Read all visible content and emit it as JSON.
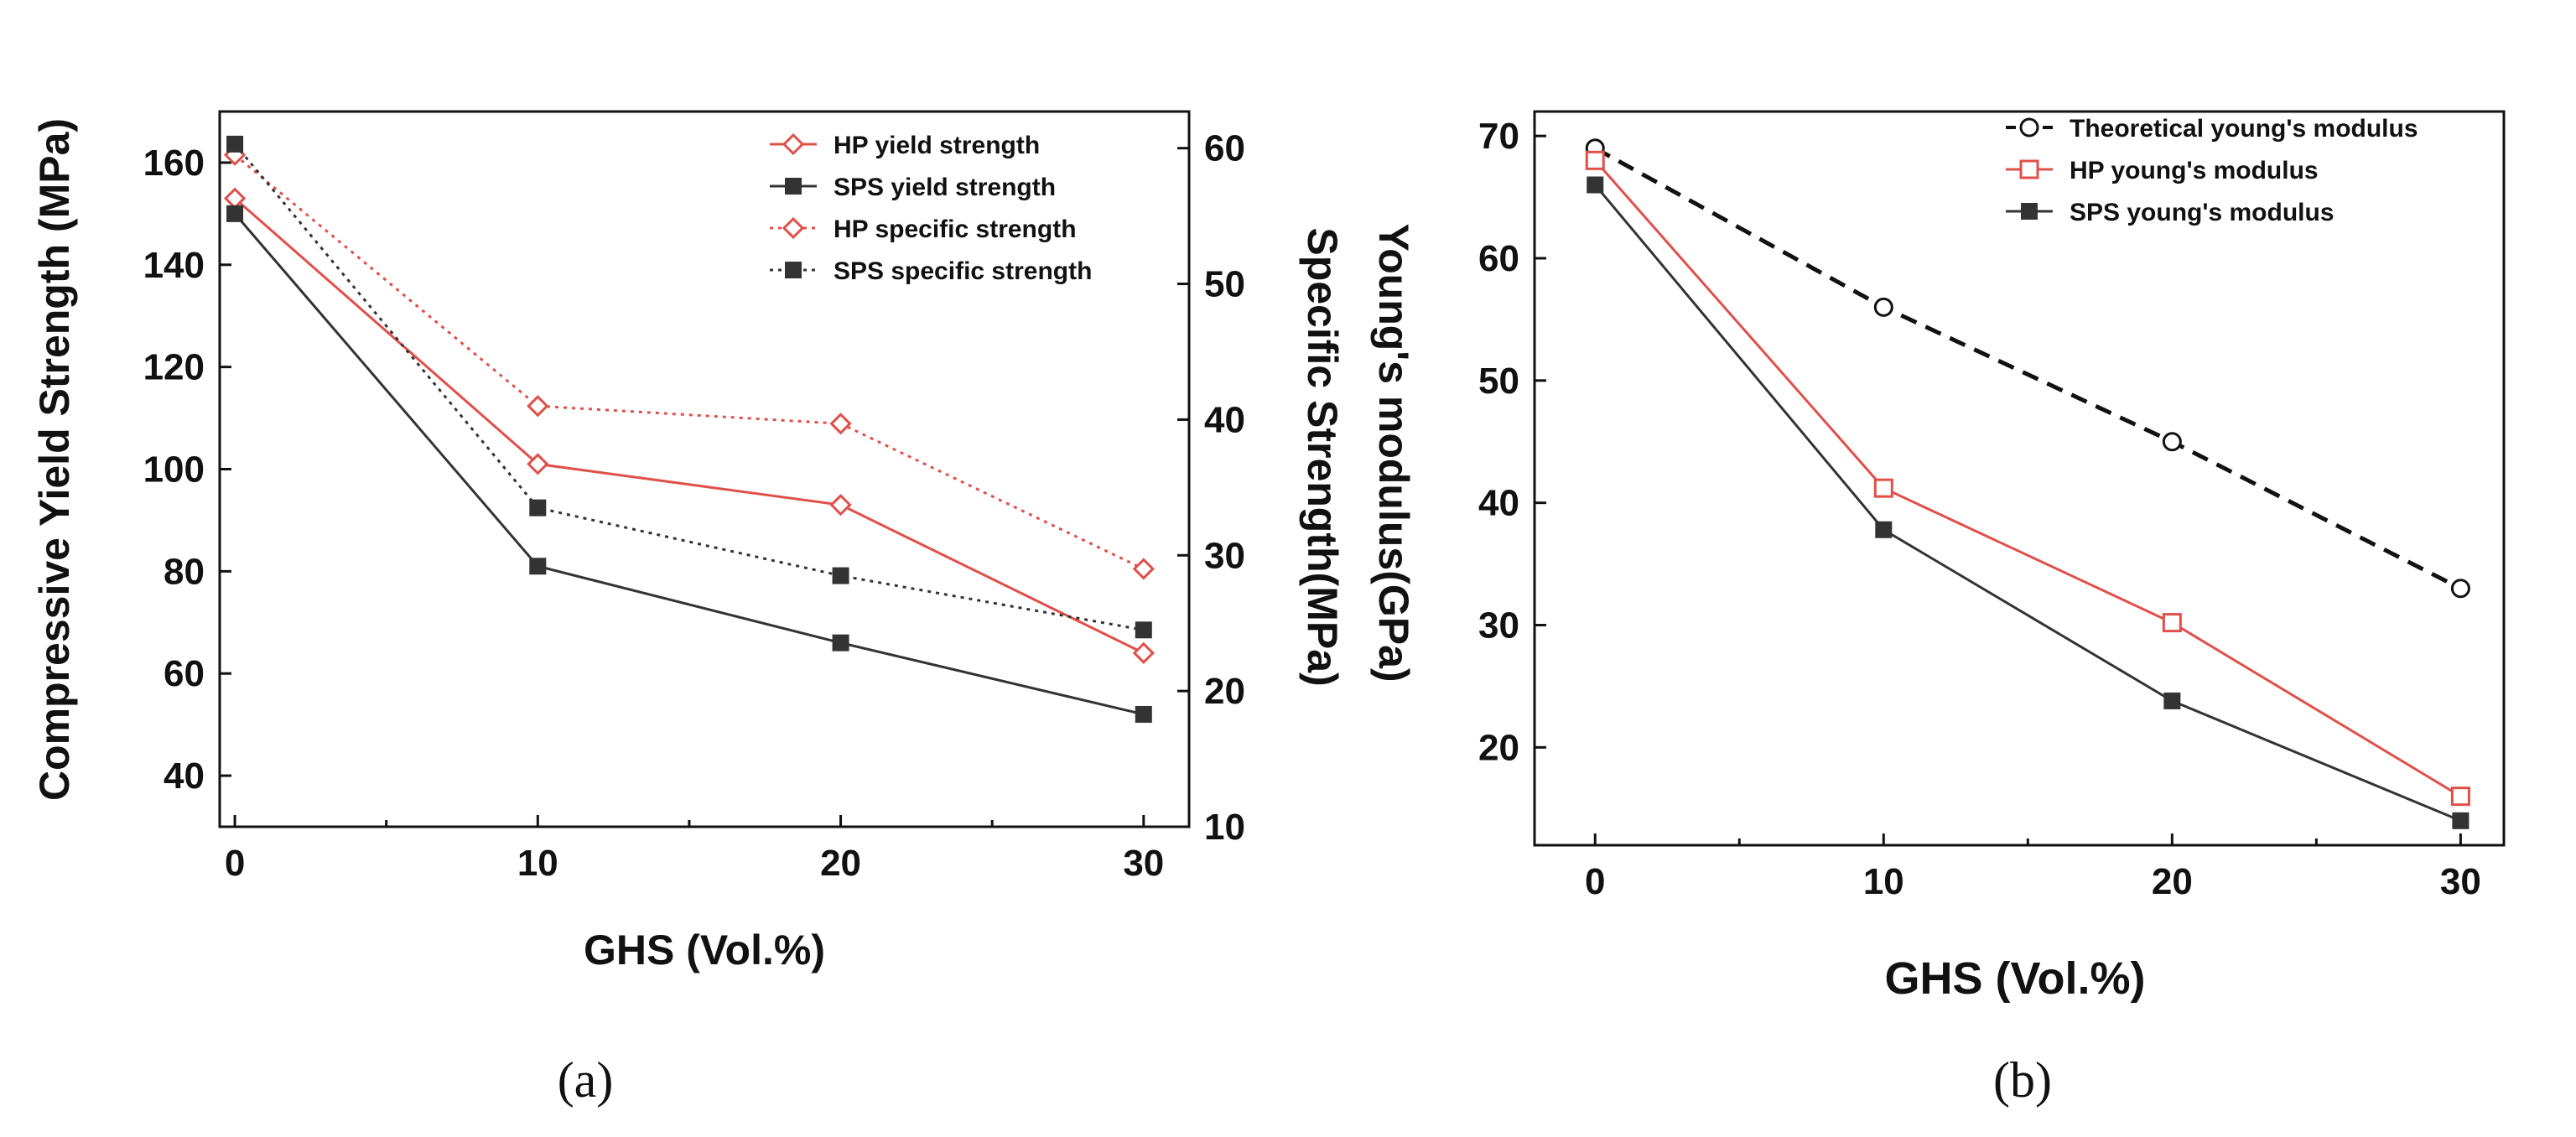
{
  "chart_data": [
    {
      "type": "line",
      "panel_label": "(a)",
      "xlabel": "GHS (Vol.%)",
      "ylabel": "Compressive Yield Strength (MPa)",
      "y2label": "Specific Strength(MPa)",
      "x": [
        0,
        10,
        20,
        30
      ],
      "xlim": [
        -0.5,
        31.5
      ],
      "ylim": [
        30,
        170
      ],
      "y2lim": [
        10,
        62.7
      ],
      "xticks": [
        "0",
        "10",
        "20",
        "30"
      ],
      "yticks": [
        "40",
        "60",
        "80",
        "100",
        "120",
        "140",
        "160"
      ],
      "y2ticks": [
        "10",
        "20",
        "30",
        "40",
        "50",
        "60"
      ],
      "legend_position": "top-right",
      "series": [
        {
          "name": "HP yield strength",
          "axis": "left",
          "values": [
            153,
            101,
            93,
            64
          ],
          "color": "#e0504a",
          "marker": "open-diamond",
          "line": "solid"
        },
        {
          "name": "SPS yield strength",
          "axis": "left",
          "values": [
            150,
            81,
            66,
            52
          ],
          "color": "#333333",
          "marker": "filled-square",
          "line": "solid"
        },
        {
          "name": "HP specific strength",
          "axis": "right",
          "values": [
            59.5,
            41,
            39.7,
            29
          ],
          "color": "#e0504a",
          "marker": "open-diamond",
          "line": "dotted"
        },
        {
          "name": "SPS specific strength",
          "axis": "right",
          "values": [
            60.3,
            33.5,
            28.5,
            24.5
          ],
          "color": "#333333",
          "marker": "filled-square",
          "line": "dotted"
        }
      ]
    },
    {
      "type": "line",
      "panel_label": "(b)",
      "xlabel": "GHS (Vol.%)",
      "ylabel": "Young's modulus(GPa)",
      "x": [
        0,
        10,
        20,
        30
      ],
      "xlim": [
        -2.1,
        31.5
      ],
      "ylim": [
        12,
        72
      ],
      "xticks": [
        "0",
        "10",
        "20",
        "30"
      ],
      "yticks": [
        "20",
        "30",
        "40",
        "50",
        "60",
        "70"
      ],
      "legend_position": "top-right",
      "series": [
        {
          "name": "Theoretical young's modulus",
          "values": [
            69,
            56,
            45,
            33
          ],
          "color": "#111111",
          "marker": "open-circle",
          "line": "dashed"
        },
        {
          "name": "HP young's modulus",
          "values": [
            68,
            41.2,
            30.2,
            16
          ],
          "color": "#e0504a",
          "marker": "open-square",
          "line": "solid"
        },
        {
          "name": "SPS young's modulus",
          "values": [
            66,
            37.8,
            23.8,
            14
          ],
          "color": "#333333",
          "marker": "filled-square",
          "line": "solid"
        }
      ]
    }
  ]
}
